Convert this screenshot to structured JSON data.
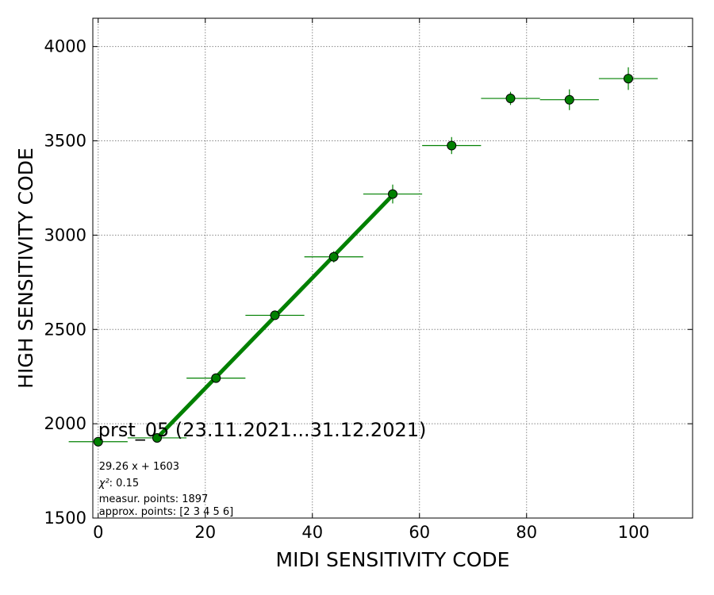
{
  "chart_data": {
    "type": "scatter",
    "xlabel": "MIDI SENSITIVITY CODE",
    "ylabel": "HIGH SENSITIVITY CODE",
    "xlim": [
      -1,
      111
    ],
    "ylim": [
      1500,
      4150
    ],
    "xticks": [
      0,
      20,
      40,
      60,
      80,
      100
    ],
    "yticks": [
      1500,
      2000,
      2500,
      3000,
      3500,
      4000
    ],
    "grid": true,
    "colors": {
      "marker": "#008000",
      "fit_line": "#008000",
      "errorbar": "#008000"
    },
    "points": [
      {
        "x": 0,
        "y": 1905,
        "xerr": 5.5,
        "yerr": 12
      },
      {
        "x": 11,
        "y": 1925,
        "xerr": 5.5,
        "yerr": 12
      },
      {
        "x": 22,
        "y": 2242,
        "xerr": 5.5,
        "yerr": 12
      },
      {
        "x": 33,
        "y": 2575,
        "xerr": 5.5,
        "yerr": 15
      },
      {
        "x": 44,
        "y": 2885,
        "xerr": 5.5,
        "yerr": 30
      },
      {
        "x": 55,
        "y": 3218,
        "xerr": 5.5,
        "yerr": 50
      },
      {
        "x": 66,
        "y": 3475,
        "xerr": 5.5,
        "yerr": 45
      },
      {
        "x": 77,
        "y": 3725,
        "xerr": 5.5,
        "yerr": 35
      },
      {
        "x": 88,
        "y": 3718,
        "xerr": 5.5,
        "yerr": 55
      },
      {
        "x": 99,
        "y": 3830,
        "xerr": 5.5,
        "yerr": 60
      }
    ],
    "fit": {
      "slope": 29.26,
      "intercept": 1603,
      "x_range": [
        11,
        55
      ]
    },
    "annotations": {
      "title": "prst_05 (23.11.2021...31.12.2021)",
      "equation": "29.26 x + 1603",
      "chi2_label": "χ²",
      "chi2_value": ": 0.15",
      "measur": "measur. points: 1897",
      "approx": "approx. points: [2 3 4 5 6]"
    }
  }
}
